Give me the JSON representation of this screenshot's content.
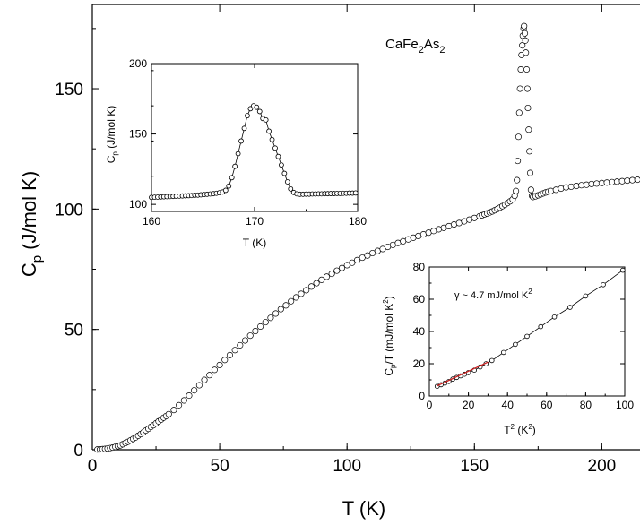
{
  "chart_data": [
    {
      "type": "scatter",
      "title": "",
      "annotation": {
        "prefix": "CaFe",
        "sub1": "2",
        "mid": "As",
        "sub2": "2"
      },
      "xlabel": "T (K)",
      "ylabel": {
        "main": "C",
        "sub": "p",
        "rest": " (J/mol K)"
      },
      "xlim": [
        0,
        215
      ],
      "ylim": [
        0,
        185
      ],
      "xticks": [
        0,
        50,
        100,
        150,
        200
      ],
      "yticks": [
        0,
        50,
        100,
        150
      ],
      "series": [
        {
          "points": [
            [
              2,
              0.1
            ],
            [
              3,
              0.15
            ],
            [
              4,
              0.25
            ],
            [
              5,
              0.35
            ],
            [
              6,
              0.5
            ],
            [
              7,
              0.7
            ],
            [
              8,
              0.9
            ],
            [
              9,
              1.2
            ],
            [
              10,
              1.5
            ],
            [
              11,
              1.8
            ],
            [
              12,
              2.3
            ],
            [
              13,
              2.8
            ],
            [
              14,
              3.3
            ],
            [
              15,
              3.9
            ],
            [
              16,
              4.5
            ],
            [
              17,
              5.1
            ],
            [
              18,
              5.8
            ],
            [
              19,
              6.5
            ],
            [
              20,
              7.2
            ],
            [
              21,
              8.0
            ],
            [
              22,
              8.7
            ],
            [
              23,
              9.5
            ],
            [
              24,
              10.2
            ],
            [
              25,
              11.0
            ],
            [
              26,
              11.8
            ],
            [
              27,
              12.5
            ],
            [
              28,
              13.3
            ],
            [
              29,
              14.0
            ],
            [
              30,
              14.8
            ],
            [
              32,
              16.5
            ],
            [
              34,
              18.5
            ],
            [
              36,
              20.5
            ],
            [
              38,
              22.5
            ],
            [
              40,
              24.7
            ],
            [
              42,
              26.8
            ],
            [
              44,
              29.0
            ],
            [
              46,
              31.0
            ],
            [
              48,
              33.2
            ],
            [
              50,
              35.2
            ],
            [
              52,
              37.3
            ],
            [
              54,
              39.3
            ],
            [
              56,
              41.4
            ],
            [
              58,
              43.4
            ],
            [
              60,
              45.4
            ],
            [
              62,
              47.4
            ],
            [
              64,
              49.3
            ],
            [
              66,
              51.2
            ],
            [
              68,
              53.0
            ],
            [
              70,
              54.8
            ],
            [
              72,
              56.6
            ],
            [
              74,
              58.4
            ],
            [
              76,
              60.0
            ],
            [
              78,
              61.7
            ],
            [
              80,
              63.3
            ],
            [
              82,
              64.8
            ],
            [
              84,
              66.3
            ],
            [
              86,
              67.8
            ],
            [
              88,
              69.2
            ],
            [
              90,
              70.6
            ],
            [
              92,
              71.9
            ],
            [
              94,
              73.1
            ],
            [
              96,
              74.4
            ],
            [
              98,
              75.5
            ],
            [
              100,
              76.7
            ],
            [
              102,
              77.7
            ],
            [
              104,
              78.8
            ],
            [
              106,
              79.8
            ],
            [
              108,
              80.7
            ],
            [
              110,
              81.7
            ],
            [
              112,
              82.6
            ],
            [
              114,
              83.4
            ],
            [
              116,
              84.3
            ],
            [
              118,
              85.1
            ],
            [
              120,
              85.9
            ],
            [
              122,
              86.6
            ],
            [
              124,
              87.4
            ],
            [
              126,
              88.1
            ],
            [
              128,
              88.8
            ],
            [
              130,
              89.5
            ],
            [
              132,
              90.2
            ],
            [
              134,
              90.9
            ],
            [
              136,
              91.6
            ],
            [
              138,
              92.2
            ],
            [
              140,
              92.9
            ],
            [
              142,
              93.6
            ],
            [
              144,
              94.2
            ],
            [
              146,
              94.9
            ],
            [
              148,
              95.6
            ],
            [
              150,
              96.3
            ],
            [
              152,
              97.0
            ],
            [
              153,
              97.4
            ],
            [
              154,
              97.8
            ],
            [
              155,
              98.2
            ],
            [
              156,
              98.6
            ],
            [
              157,
              99.0
            ],
            [
              158,
              99.5
            ],
            [
              159,
              100.0
            ],
            [
              160,
              100.6
            ],
            [
              161,
              101.2
            ],
            [
              162,
              101.8
            ],
            [
              163,
              102.5
            ],
            [
              164,
              103.2
            ],
            [
              165,
              104.0
            ],
            [
              165.8,
              105.5
            ],
            [
              166.3,
              107.5
            ],
            [
              166.7,
              112
            ],
            [
              167.0,
              120
            ],
            [
              167.3,
              130
            ],
            [
              167.6,
              140
            ],
            [
              167.9,
              150
            ],
            [
              168.2,
              158
            ],
            [
              168.5,
              164
            ],
            [
              168.8,
              168
            ],
            [
              169.0,
              172
            ],
            [
              169.3,
              175
            ],
            [
              169.5,
              176
            ],
            [
              169.8,
              173
            ],
            [
              170.0,
              170
            ],
            [
              170.2,
              165
            ],
            [
              170.5,
              158
            ],
            [
              170.8,
              150
            ],
            [
              171.0,
              142
            ],
            [
              171.3,
              133
            ],
            [
              171.6,
              124
            ],
            [
              171.9,
              115
            ],
            [
              172.2,
              108
            ],
            [
              172.6,
              105.5
            ],
            [
              173.0,
              105
            ],
            [
              174,
              105.3
            ],
            [
              175,
              105.7
            ],
            [
              176,
              106.1
            ],
            [
              177,
              106.5
            ],
            [
              178,
              106.9
            ],
            [
              179,
              107.2
            ],
            [
              180,
              107.5
            ],
            [
              182,
              108
            ],
            [
              184,
              108.5
            ],
            [
              186,
              109
            ],
            [
              188,
              109.3
            ],
            [
              190,
              109.6
            ],
            [
              192,
              109.9
            ],
            [
              194,
              110.1
            ],
            [
              196,
              110.4
            ],
            [
              198,
              110.6
            ],
            [
              200,
              110.8
            ],
            [
              202,
              111
            ],
            [
              204,
              111.2
            ],
            [
              206,
              111.4
            ],
            [
              208,
              111.6
            ],
            [
              210,
              111.8
            ],
            [
              212,
              112
            ],
            [
              214,
              112.2
            ]
          ]
        }
      ]
    },
    {
      "type": "line",
      "title": "",
      "xlabel": "T (K)",
      "ylabel": {
        "main": "C",
        "sub": "p",
        "rest": " (J/mol K)"
      },
      "xlim": [
        160,
        180
      ],
      "ylim": [
        95,
        200
      ],
      "xticks": [
        160,
        170,
        180
      ],
      "yticks": [
        100,
        150,
        200
      ],
      "series": [
        {
          "points": [
            [
              160,
              105.0
            ],
            [
              160.3,
              105.1
            ],
            [
              160.6,
              105.2
            ],
            [
              160.9,
              105.3
            ],
            [
              161.2,
              105.4
            ],
            [
              161.5,
              105.5
            ],
            [
              161.8,
              105.6
            ],
            [
              162.1,
              105.7
            ],
            [
              162.4,
              105.8
            ],
            [
              162.7,
              105.9
            ],
            [
              163.0,
              106.0
            ],
            [
              163.3,
              106.1
            ],
            [
              163.6,
              106.2
            ],
            [
              163.9,
              106.3
            ],
            [
              164.2,
              106.5
            ],
            [
              164.5,
              106.6
            ],
            [
              164.8,
              106.8
            ],
            [
              165.1,
              107.0
            ],
            [
              165.4,
              107.2
            ],
            [
              165.7,
              107.4
            ],
            [
              166.0,
              107.6
            ],
            [
              166.3,
              107.9
            ],
            [
              166.6,
              108.3
            ],
            [
              166.9,
              108.8
            ],
            [
              167.2,
              110
            ],
            [
              167.5,
              113
            ],
            [
              167.8,
              119
            ],
            [
              168.1,
              127
            ],
            [
              168.4,
              136
            ],
            [
              168.7,
              145
            ],
            [
              169.0,
              154
            ],
            [
              169.3,
              163
            ],
            [
              169.6,
              168
            ],
            [
              169.9,
              170
            ],
            [
              170.2,
              169
            ],
            [
              170.5,
              166
            ],
            [
              170.8,
              161
            ],
            [
              171.1,
              160
            ],
            [
              171.4,
              152
            ],
            [
              171.7,
              146
            ],
            [
              172.0,
              140
            ],
            [
              172.3,
              134
            ],
            [
              172.6,
              128
            ],
            [
              172.9,
              122
            ],
            [
              173.2,
              116
            ],
            [
              173.5,
              111
            ],
            [
              173.8,
              108.5
            ],
            [
              174.1,
              107.5
            ],
            [
              174.4,
              107.2
            ],
            [
              174.7,
              107.2
            ],
            [
              175.0,
              107.3
            ],
            [
              175.3,
              107.3
            ],
            [
              175.6,
              107.4
            ],
            [
              175.9,
              107.4
            ],
            [
              176.2,
              107.5
            ],
            [
              176.5,
              107.5
            ],
            [
              176.8,
              107.6
            ],
            [
              177.1,
              107.6
            ],
            [
              177.4,
              107.7
            ],
            [
              177.7,
              107.7
            ],
            [
              178.0,
              107.8
            ],
            [
              178.3,
              107.8
            ],
            [
              178.6,
              107.9
            ],
            [
              178.9,
              107.9
            ],
            [
              179.2,
              108.0
            ],
            [
              179.5,
              108.0
            ],
            [
              179.8,
              108.1
            ]
          ]
        }
      ]
    },
    {
      "type": "line",
      "title": "",
      "annotation": {
        "prefix": "γ ~ 4.7 mJ/mol K",
        "sup": "2"
      },
      "xlabel": {
        "main": "T",
        "sup": "2",
        "rest": " (K",
        "sup2": "2",
        "close": ")"
      },
      "ylabel": {
        "main": "C",
        "sub": "p",
        "rest": "/T (mJ/mol K",
        "sup": "2",
        "close": ")"
      },
      "xlim": [
        0,
        100
      ],
      "ylim": [
        0,
        80
      ],
      "xticks": [
        0,
        20,
        40,
        60,
        80,
        100
      ],
      "yticks": [
        0,
        20,
        40,
        60,
        80
      ],
      "series": [
        {
          "points": [
            [
              4,
              6
            ],
            [
              6,
              7
            ],
            [
              8,
              8
            ],
            [
              10,
              9
            ],
            [
              12,
              10.5
            ],
            [
              14,
              11.5
            ],
            [
              16,
              12.5
            ],
            [
              18,
              13.5
            ],
            [
              20,
              14.5
            ],
            [
              23,
              16
            ],
            [
              26,
              18
            ],
            [
              29,
              20
            ],
            [
              32,
              22
            ],
            [
              38,
              27
            ],
            [
              44,
              32
            ],
            [
              50,
              37
            ],
            [
              57,
              43
            ],
            [
              64,
              49
            ],
            [
              72,
              55
            ],
            [
              80,
              62
            ],
            [
              89,
              69
            ],
            [
              99,
              78
            ]
          ]
        },
        {
          "name": "",
          "color": "#cc1f1f",
          "fit": [
            [
              4,
              6.3
            ],
            [
              30,
              21
            ]
          ]
        }
      ]
    }
  ]
}
